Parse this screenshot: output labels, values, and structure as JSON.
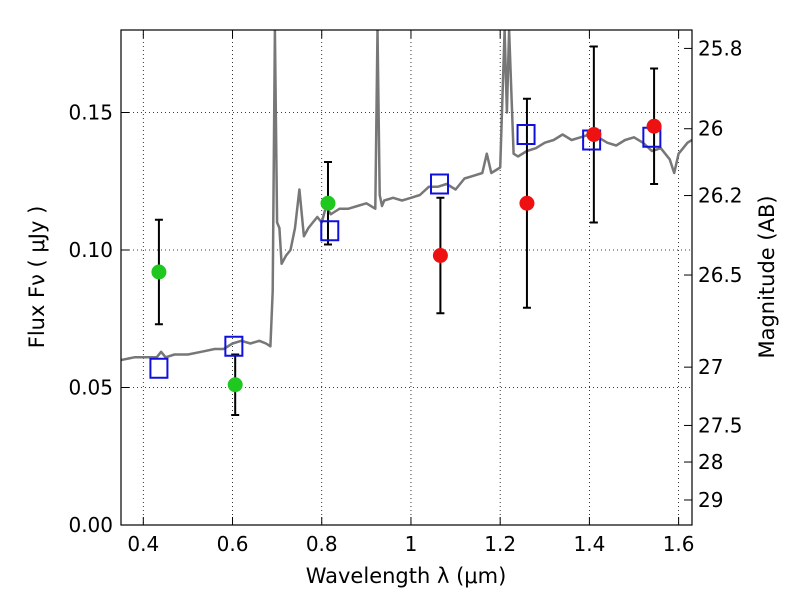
{
  "chart_data": {
    "type": "scatter",
    "title": "",
    "xlabel": "Wavelength  λ (μm)",
    "ylabel": "Flux  Fν  ( μJy )",
    "y2label": "Magnitude (AB)",
    "xlim": [
      0.35,
      1.63
    ],
    "ylim": [
      0.0,
      0.18
    ],
    "grid": true,
    "x_ticks": [
      0.4,
      0.6,
      0.8,
      1.0,
      1.2,
      1.4,
      1.6
    ],
    "x_tick_labels": [
      "0.4",
      "0.6",
      "0.8",
      "1",
      "1.2",
      "1.4",
      "1.6"
    ],
    "y_ticks": [
      0.0,
      0.05,
      0.1,
      0.15
    ],
    "y_tick_labels": [
      "0.00",
      "0.05",
      "0.10",
      "0.15"
    ],
    "y2_ticks": [
      {
        "label": "25.8",
        "flux": 0.1733
      },
      {
        "label": "26",
        "flux": 0.1441
      },
      {
        "label": "26.2",
        "flux": 0.1198
      },
      {
        "label": "26.5",
        "flux": 0.0909
      },
      {
        "label": "27",
        "flux": 0.0574
      },
      {
        "label": "27.5",
        "flux": 0.0362
      },
      {
        "label": "28",
        "flux": 0.0229
      },
      {
        "label": "29",
        "flux": 0.0091
      }
    ],
    "series": [
      {
        "name": "green",
        "marker": "circle",
        "color": "#1ec81e",
        "points": [
          {
            "x": 0.435,
            "y": 0.092,
            "err": 0.019
          },
          {
            "x": 0.606,
            "y": 0.051,
            "err": 0.011
          },
          {
            "x": 0.814,
            "y": 0.117,
            "err": 0.015
          }
        ]
      },
      {
        "name": "red",
        "marker": "circle",
        "color": "#ee1111",
        "points": [
          {
            "x": 1.066,
            "y": 0.098,
            "err": 0.021
          },
          {
            "x": 1.26,
            "y": 0.117,
            "err": 0.038
          },
          {
            "x": 1.41,
            "y": 0.142,
            "err": 0.032
          },
          {
            "x": 1.545,
            "y": 0.145,
            "err": 0.021
          }
        ]
      },
      {
        "name": "blue",
        "marker": "open-square",
        "color": "#1010dd",
        "points": [
          {
            "x": 0.435,
            "y": 0.057
          },
          {
            "x": 0.603,
            "y": 0.065
          },
          {
            "x": 0.818,
            "y": 0.107
          },
          {
            "x": 1.064,
            "y": 0.124
          },
          {
            "x": 1.258,
            "y": 0.142
          },
          {
            "x": 1.405,
            "y": 0.14
          },
          {
            "x": 1.54,
            "y": 0.141
          }
        ]
      },
      {
        "name": "model",
        "marker": "line",
        "color": "#777777",
        "x": [
          0.35,
          0.38,
          0.41,
          0.43,
          0.44,
          0.45,
          0.47,
          0.5,
          0.53,
          0.56,
          0.58,
          0.6,
          0.62,
          0.64,
          0.66,
          0.675,
          0.685,
          0.69,
          0.695,
          0.7,
          0.705,
          0.71,
          0.72,
          0.73,
          0.74,
          0.75,
          0.76,
          0.77,
          0.78,
          0.79,
          0.8,
          0.81,
          0.82,
          0.83,
          0.84,
          0.86,
          0.88,
          0.9,
          0.92,
          0.925,
          0.93,
          0.935,
          0.94,
          0.96,
          0.98,
          1.0,
          1.02,
          1.04,
          1.06,
          1.08,
          1.1,
          1.12,
          1.14,
          1.16,
          1.17,
          1.18,
          1.2,
          1.21,
          1.215,
          1.22,
          1.23,
          1.24,
          1.26,
          1.28,
          1.3,
          1.32,
          1.34,
          1.36,
          1.38,
          1.4,
          1.42,
          1.44,
          1.46,
          1.48,
          1.5,
          1.52,
          1.54,
          1.56,
          1.58,
          1.59,
          1.6,
          1.61,
          1.62,
          1.63
        ],
        "y": [
          0.06,
          0.061,
          0.061,
          0.061,
          0.063,
          0.061,
          0.062,
          0.062,
          0.063,
          0.064,
          0.064,
          0.066,
          0.067,
          0.066,
          0.067,
          0.066,
          0.065,
          0.085,
          0.18,
          0.11,
          0.108,
          0.095,
          0.098,
          0.1,
          0.108,
          0.122,
          0.105,
          0.108,
          0.11,
          0.112,
          0.11,
          0.116,
          0.113,
          0.114,
          0.115,
          0.115,
          0.116,
          0.117,
          0.115,
          0.18,
          0.12,
          0.116,
          0.118,
          0.119,
          0.118,
          0.119,
          0.12,
          0.123,
          0.123,
          0.124,
          0.122,
          0.126,
          0.127,
          0.128,
          0.135,
          0.128,
          0.13,
          0.18,
          0.15,
          0.18,
          0.135,
          0.134,
          0.136,
          0.137,
          0.139,
          0.14,
          0.142,
          0.14,
          0.141,
          0.142,
          0.141,
          0.139,
          0.138,
          0.14,
          0.141,
          0.139,
          0.136,
          0.137,
          0.133,
          0.128,
          0.135,
          0.137,
          0.139,
          0.14
        ]
      }
    ]
  }
}
